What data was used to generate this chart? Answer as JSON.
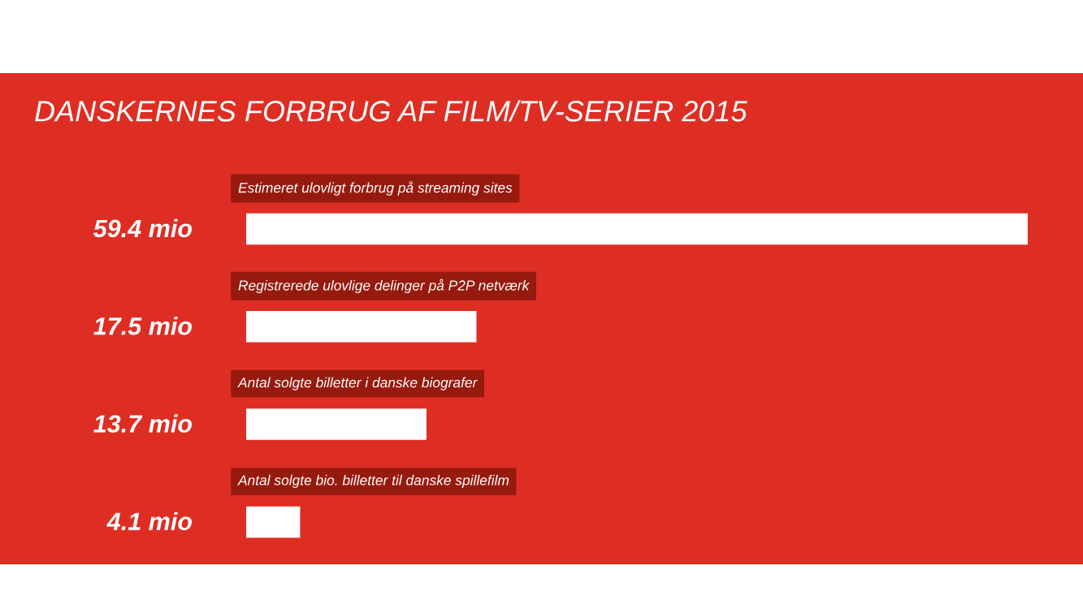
{
  "chart_data": {
    "type": "bar",
    "orientation": "horizontal",
    "title": "DANSKERNES FORBRUG AF FILM/TV-SERIER 2015",
    "categories": [
      "Estimeret ulovligt forbrug på streaming sites",
      "Registrerede ulovlige delinger på P2P netværk",
      "Antal solgte billetter i danske biografer",
      "Antal solgte bio. billetter til danske spillefilm"
    ],
    "values": [
      59.4,
      17.5,
      13.7,
      4.1
    ],
    "color": "#ffffff",
    "value_labels": [
      "59.4 mio",
      "17.5 mio",
      "13.7 mio",
      "4.1 mio"
    ],
    "tick_labels": "y"
  }
}
